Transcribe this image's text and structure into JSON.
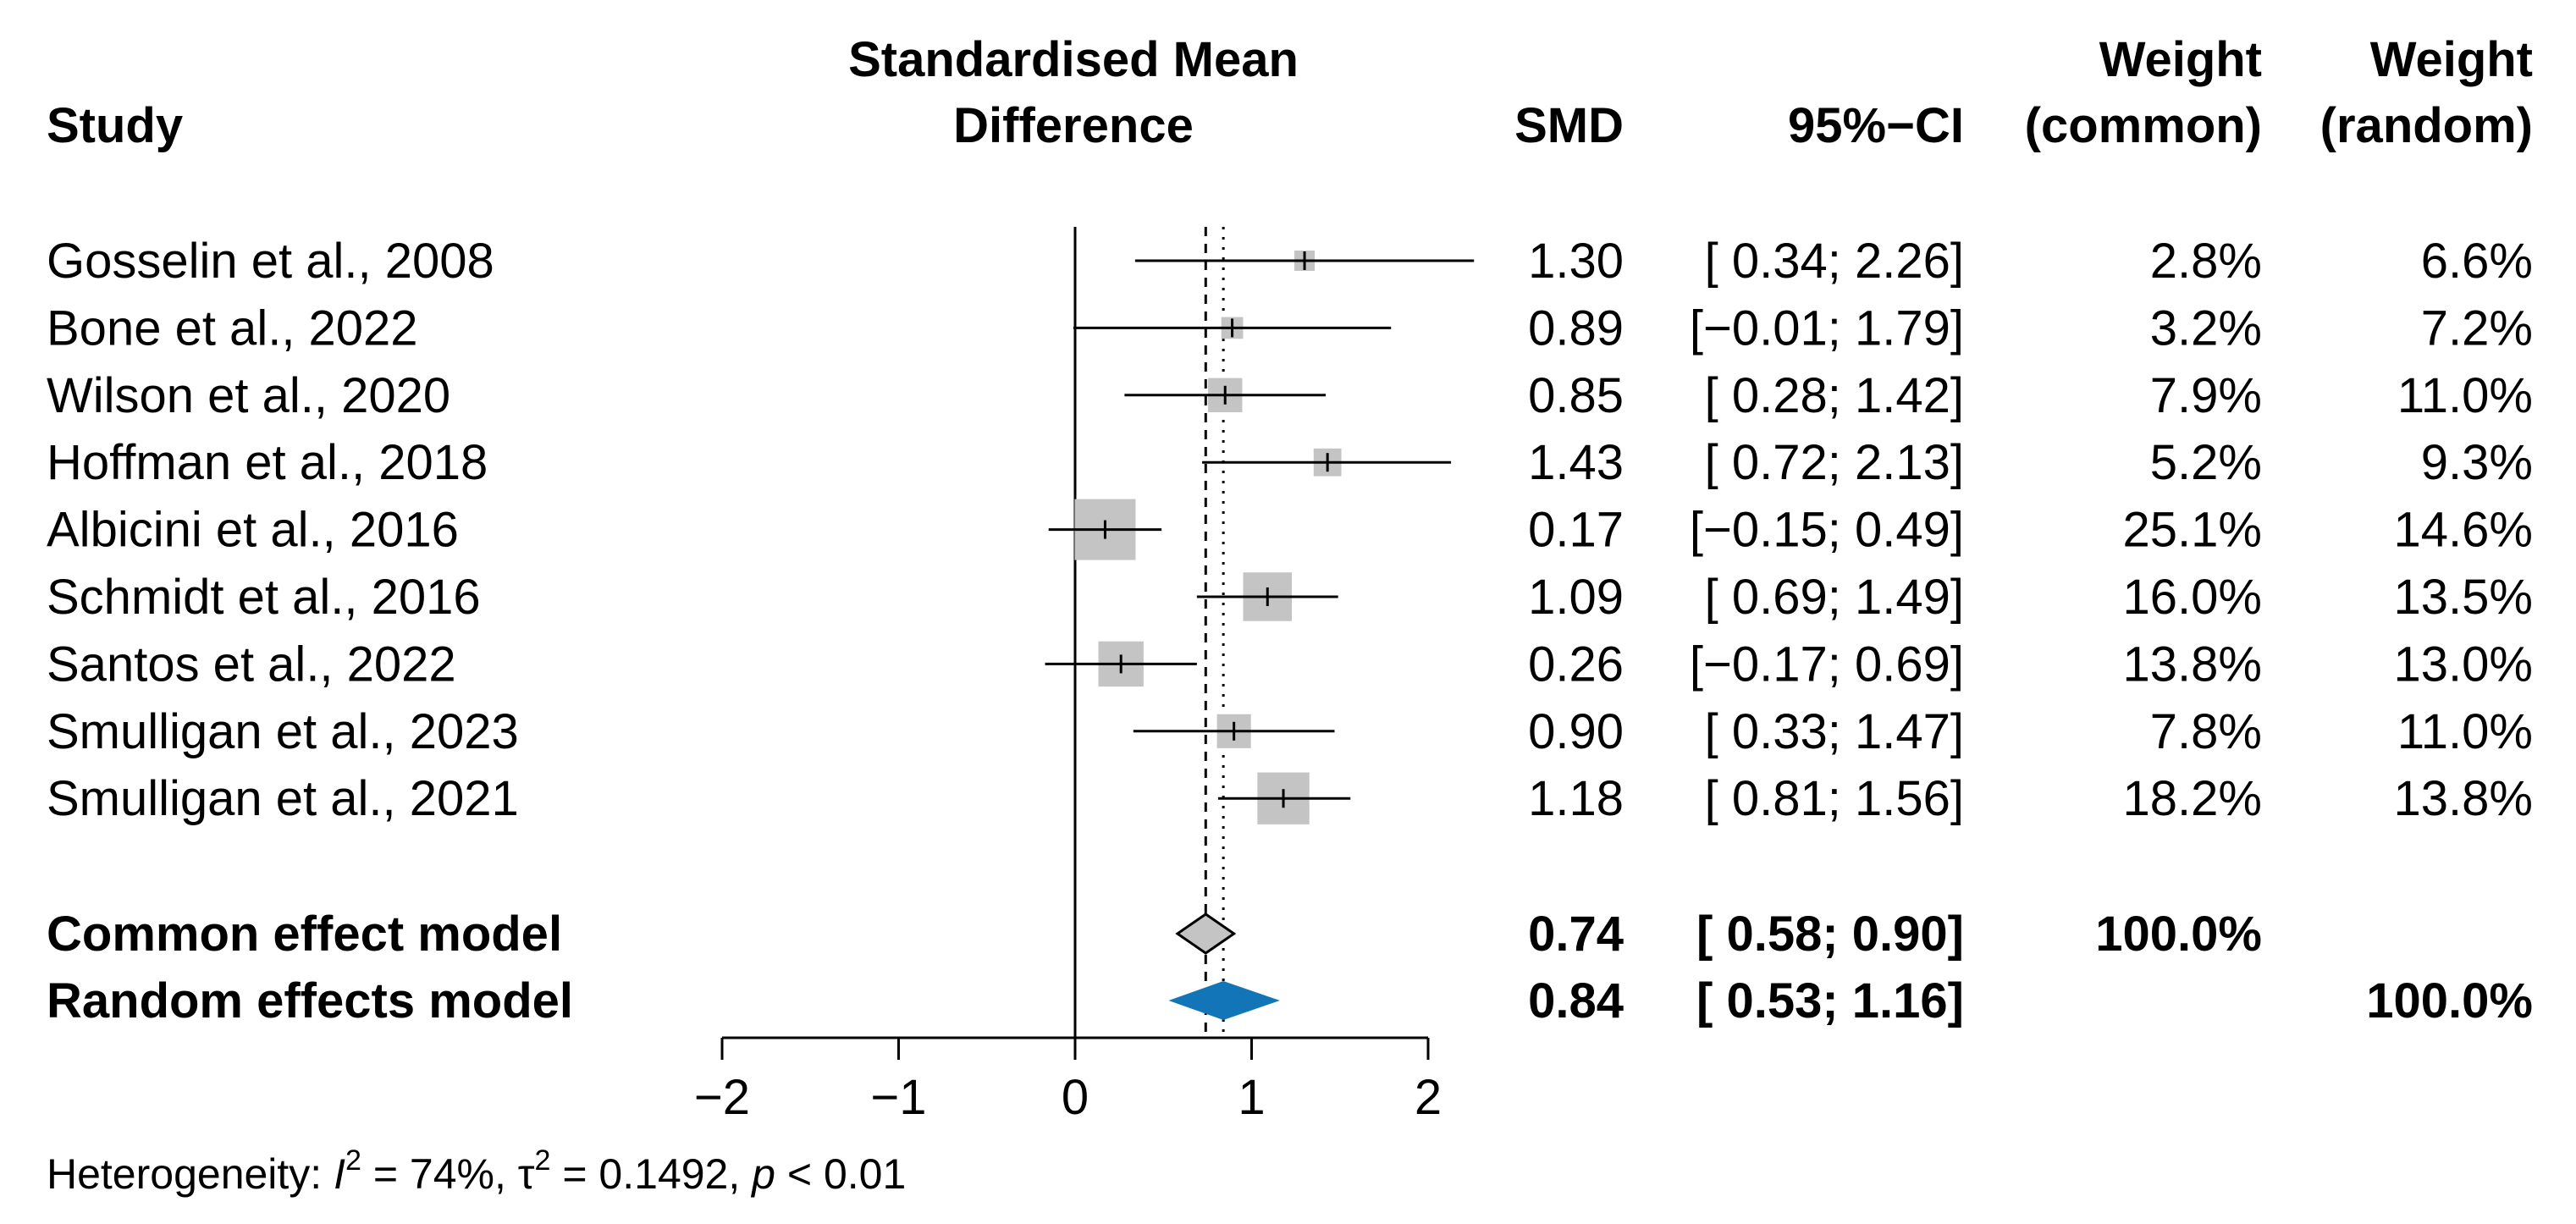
{
  "header": {
    "study": "Study",
    "smd_label_line1": "Standardised Mean",
    "smd_label_line2": "Difference",
    "smd": "SMD",
    "ci": "95%−CI",
    "weight_common_line1": "Weight",
    "weight_common_line2": "(common)",
    "weight_random_line1": "Weight",
    "weight_random_line2": "(random)"
  },
  "colors": {
    "square": "#c4c4c4",
    "common_diamond": "#c4c4c4",
    "random_diamond": "#1175b8",
    "lines": "#000000"
  },
  "chart_data": {
    "type": "forest",
    "xlim": [
      -2,
      2
    ],
    "ticks": [
      -2,
      -1,
      0,
      1,
      2
    ],
    "tick_labels": [
      "−2",
      "−1",
      "0",
      "1",
      "2"
    ],
    "null_value": 0,
    "common_estimate": 0.74,
    "random_estimate": 0.84,
    "studies": [
      {
        "name": "Gosselin et al., 2008",
        "smd": 1.3,
        "lower": 0.34,
        "upper": 2.26,
        "smd_text": "1.30",
        "ci_text": "[ 0.34; 2.26]",
        "w_common": 2.8,
        "w_random": 6.6,
        "w_common_text": "2.8%",
        "w_random_text": "6.6%"
      },
      {
        "name": "Bone et al., 2022",
        "smd": 0.89,
        "lower": -0.01,
        "upper": 1.79,
        "smd_text": "0.89",
        "ci_text": "[−0.01; 1.79]",
        "w_common": 3.2,
        "w_random": 7.2,
        "w_common_text": "3.2%",
        "w_random_text": "7.2%"
      },
      {
        "name": "Wilson et al., 2020",
        "smd": 0.85,
        "lower": 0.28,
        "upper": 1.42,
        "smd_text": "0.85",
        "ci_text": "[ 0.28; 1.42]",
        "w_common": 7.9,
        "w_random": 11.0,
        "w_common_text": "7.9%",
        "w_random_text": "11.0%"
      },
      {
        "name": "Hoffman et al., 2018",
        "smd": 1.43,
        "lower": 0.72,
        "upper": 2.13,
        "smd_text": "1.43",
        "ci_text": "[ 0.72; 2.13]",
        "w_common": 5.2,
        "w_random": 9.3,
        "w_common_text": "5.2%",
        "w_random_text": "9.3%"
      },
      {
        "name": "Albicini et al., 2016",
        "smd": 0.17,
        "lower": -0.15,
        "upper": 0.49,
        "smd_text": "0.17",
        "ci_text": "[−0.15; 0.49]",
        "w_common": 25.1,
        "w_random": 14.6,
        "w_common_text": "25.1%",
        "w_random_text": "14.6%"
      },
      {
        "name": "Schmidt et al., 2016",
        "smd": 1.09,
        "lower": 0.69,
        "upper": 1.49,
        "smd_text": "1.09",
        "ci_text": "[ 0.69; 1.49]",
        "w_common": 16.0,
        "w_random": 13.5,
        "w_common_text": "16.0%",
        "w_random_text": "13.5%"
      },
      {
        "name": "Santos et al., 2022",
        "smd": 0.26,
        "lower": -0.17,
        "upper": 0.69,
        "smd_text": "0.26",
        "ci_text": "[−0.17; 0.69]",
        "w_common": 13.8,
        "w_random": 13.0,
        "w_common_text": "13.8%",
        "w_random_text": "13.0%"
      },
      {
        "name": "Smulligan et al., 2023",
        "smd": 0.9,
        "lower": 0.33,
        "upper": 1.47,
        "smd_text": "0.90",
        "ci_text": "[ 0.33; 1.47]",
        "w_common": 7.8,
        "w_random": 11.0,
        "w_common_text": "7.8%",
        "w_random_text": "11.0%"
      },
      {
        "name": "Smulligan et al., 2021",
        "smd": 1.18,
        "lower": 0.81,
        "upper": 1.56,
        "smd_text": "1.18",
        "ci_text": "[ 0.81; 1.56]",
        "w_common": 18.2,
        "w_random": 13.8,
        "w_common_text": "18.2%",
        "w_random_text": "13.8%"
      }
    ],
    "models": [
      {
        "name": "Common effect model",
        "kind": "common",
        "smd": 0.74,
        "lower": 0.58,
        "upper": 0.9,
        "smd_text": "0.74",
        "ci_text": "[ 0.58; 0.90]",
        "w_common_text": "100.0%",
        "w_random_text": ""
      },
      {
        "name": "Random effects model",
        "kind": "random",
        "smd": 0.84,
        "lower": 0.53,
        "upper": 1.16,
        "smd_text": "0.84",
        "ci_text": "[ 0.53; 1.16]",
        "w_common_text": "",
        "w_random_text": "100.0%"
      }
    ],
    "heterogeneity": {
      "prefix": "Heterogeneity: ",
      "i2_symbol": "I",
      "i2_exp": "2",
      "i2_value": " = 74%, ",
      "tau_symbol": "τ",
      "tau_exp": "2",
      "tau_value": " = 0.1492, ",
      "p_symbol": "p",
      "p_value": " < 0.01"
    }
  }
}
